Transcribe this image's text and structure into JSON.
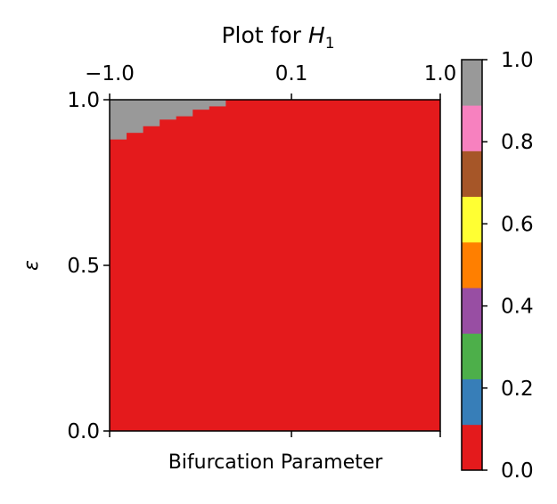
{
  "chart_data": {
    "type": "heatmap",
    "title": "Plot for ",
    "title_math": "H",
    "title_sub": "1",
    "xlabel": "Bifurcation Parameter",
    "ylabel": "ε",
    "xlim": [
      -1.0,
      1.0
    ],
    "ylim": [
      0.0,
      1.0
    ],
    "x_ticks": [
      -1.0,
      0.1,
      1.0
    ],
    "x_tick_labels": [
      "−1.0",
      "0.1",
      "1.0"
    ],
    "y_ticks": [
      0.0,
      0.5,
      1.0
    ],
    "y_tick_labels": [
      "0.0",
      "0.5",
      "1.0"
    ],
    "background_value": 0.0,
    "region_value": 1.0,
    "grey_region_steps": [
      {
        "x0": -1.0,
        "x1": -0.9,
        "y_low": 0.88
      },
      {
        "x0": -0.9,
        "x1": -0.8,
        "y_low": 0.9
      },
      {
        "x0": -0.8,
        "x1": -0.7,
        "y_low": 0.92
      },
      {
        "x0": -0.7,
        "x1": -0.6,
        "y_low": 0.94
      },
      {
        "x0": -0.6,
        "x1": -0.5,
        "y_low": 0.95
      },
      {
        "x0": -0.5,
        "x1": -0.4,
        "y_low": 0.97
      },
      {
        "x0": -0.4,
        "x1": -0.3,
        "y_low": 0.98
      }
    ],
    "colorbar": {
      "range": [
        0.0,
        1.0
      ],
      "ticks": [
        0.0,
        0.2,
        0.4,
        0.6,
        0.8,
        1.0
      ],
      "tick_labels": [
        "0.0",
        "0.2",
        "0.4",
        "0.6",
        "0.8",
        "1.0"
      ],
      "colors": [
        "#e41a1c",
        "#377eb8",
        "#4daf4a",
        "#984ea3",
        "#ff7f00",
        "#ffff33",
        "#a65628",
        "#f781bf",
        "#999999"
      ]
    }
  }
}
